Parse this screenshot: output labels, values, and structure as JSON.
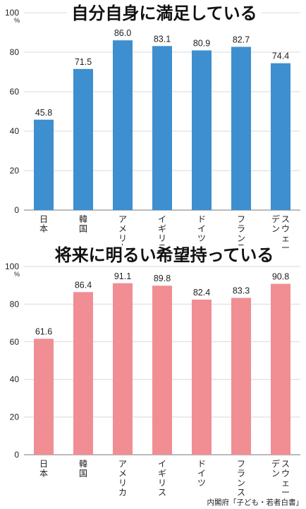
{
  "chart_data": [
    {
      "type": "bar",
      "title": "自分自身に満足している",
      "unit": "%",
      "categories": [
        "日本",
        "韓国",
        "アメリカ",
        "イギリス",
        "ドイツ",
        "フランス",
        "スウェーデン"
      ],
      "category_lines": [
        [
          "日本"
        ],
        [
          "韓国"
        ],
        [
          "アメリカ"
        ],
        [
          "イギリス"
        ],
        [
          "ドイツ"
        ],
        [
          "フランス"
        ],
        [
          "スウェー",
          "デン"
        ]
      ],
      "values": [
        45.8,
        71.5,
        86.0,
        83.1,
        80.9,
        82.7,
        74.4
      ],
      "value_labels": [
        "45.8",
        "71.5",
        "86.0",
        "83.1",
        "80.9",
        "82.7",
        "74.4"
      ],
      "yticks": [
        "0",
        "20",
        "40",
        "60",
        "80",
        "100"
      ],
      "ylim": [
        0,
        100
      ],
      "grid": true,
      "color": "#3d8fd0"
    },
    {
      "type": "bar",
      "title": "将来に明るい希望持っている",
      "unit": "%",
      "categories": [
        "日本",
        "韓国",
        "アメリカ",
        "イギリス",
        "ドイツ",
        "フランス",
        "スウェーデン"
      ],
      "category_lines": [
        [
          "日本"
        ],
        [
          "韓国"
        ],
        [
          "アメリカ"
        ],
        [
          "イギリス"
        ],
        [
          "ドイツ"
        ],
        [
          "フランス"
        ],
        [
          "スウェー",
          "デン"
        ]
      ],
      "values": [
        61.6,
        86.4,
        91.1,
        89.8,
        82.4,
        83.3,
        90.8
      ],
      "value_labels": [
        "61.6",
        "86.4",
        "91.1",
        "89.8",
        "82.4",
        "83.3",
        "90.8"
      ],
      "yticks": [
        "0",
        "20",
        "40",
        "60",
        "80",
        "100"
      ],
      "ylim": [
        0,
        100
      ],
      "grid": true,
      "color": "#f08e94"
    }
  ],
  "source": "内閣府「子ども・若者白書」"
}
